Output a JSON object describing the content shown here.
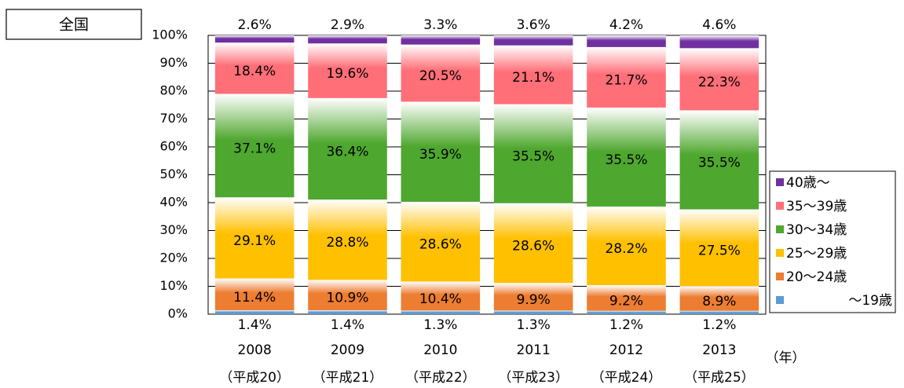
{
  "chart_data": {
    "type": "stacked_bar",
    "region_label": "全国",
    "x_unit_label": "（年）",
    "categories": [
      [
        "2008",
        "（平成20）"
      ],
      [
        "2009",
        "（平成21）"
      ],
      [
        "2010",
        "（平成22）"
      ],
      [
        "2011",
        "（平成23）"
      ],
      [
        "2012",
        "（平成24）"
      ],
      [
        "2013",
        "（平成25）"
      ]
    ],
    "ylim": [
      0,
      100
    ],
    "yticks": [
      {
        "value": 0,
        "label": "0%"
      },
      {
        "value": 10,
        "label": "10%"
      },
      {
        "value": 20,
        "label": "20%"
      },
      {
        "value": 30,
        "label": "30%"
      },
      {
        "value": 40,
        "label": "40%"
      },
      {
        "value": 50,
        "label": "50%"
      },
      {
        "value": 60,
        "label": "60%"
      },
      {
        "value": 70,
        "label": "70%"
      },
      {
        "value": 80,
        "label": "80%"
      },
      {
        "value": 90,
        "label": "90%"
      },
      {
        "value": 100,
        "label": "100%"
      }
    ],
    "grid": true,
    "legend": "right",
    "series": [
      {
        "name": "～19歳",
        "color": "#5b9bd5",
        "values": [
          1.4,
          1.4,
          1.3,
          1.3,
          1.2,
          1.2
        ],
        "value_labels": [
          "1.4%",
          "1.4%",
          "1.3%",
          "1.3%",
          "1.2%",
          "1.2%"
        ]
      },
      {
        "name": "20～24歳",
        "color": "#ed7d31",
        "values": [
          11.4,
          10.9,
          10.4,
          9.9,
          9.2,
          8.9
        ],
        "value_labels": [
          "11.4%",
          "10.9%",
          "10.4%",
          "9.9%",
          "9.2%",
          "8.9%"
        ]
      },
      {
        "name": "25～29歳",
        "color": "#ffc000",
        "values": [
          29.1,
          28.8,
          28.6,
          28.6,
          28.2,
          27.5
        ],
        "value_labels": [
          "29.1%",
          "28.8%",
          "28.6%",
          "28.6%",
          "28.2%",
          "27.5%"
        ]
      },
      {
        "name": "30～34歳",
        "color": "#4ea72e",
        "values": [
          37.1,
          36.4,
          35.9,
          35.5,
          35.5,
          35.5
        ],
        "value_labels": [
          "37.1%",
          "36.4%",
          "35.9%",
          "35.5%",
          "35.5%",
          "35.5%"
        ]
      },
      {
        "name": "35～39歳",
        "color": "#ff6f78",
        "values": [
          18.4,
          19.6,
          20.5,
          21.1,
          21.7,
          22.3
        ],
        "value_labels": [
          "18.4%",
          "19.6%",
          "20.5%",
          "21.1%",
          "21.7%",
          "22.3%"
        ]
      },
      {
        "name": "40歳～",
        "color": "#7030a0",
        "values": [
          2.6,
          2.9,
          3.3,
          3.6,
          4.2,
          4.6
        ],
        "value_labels": [
          "2.6%",
          "2.9%",
          "3.3%",
          "3.6%",
          "4.2%",
          "4.6%"
        ]
      }
    ]
  }
}
